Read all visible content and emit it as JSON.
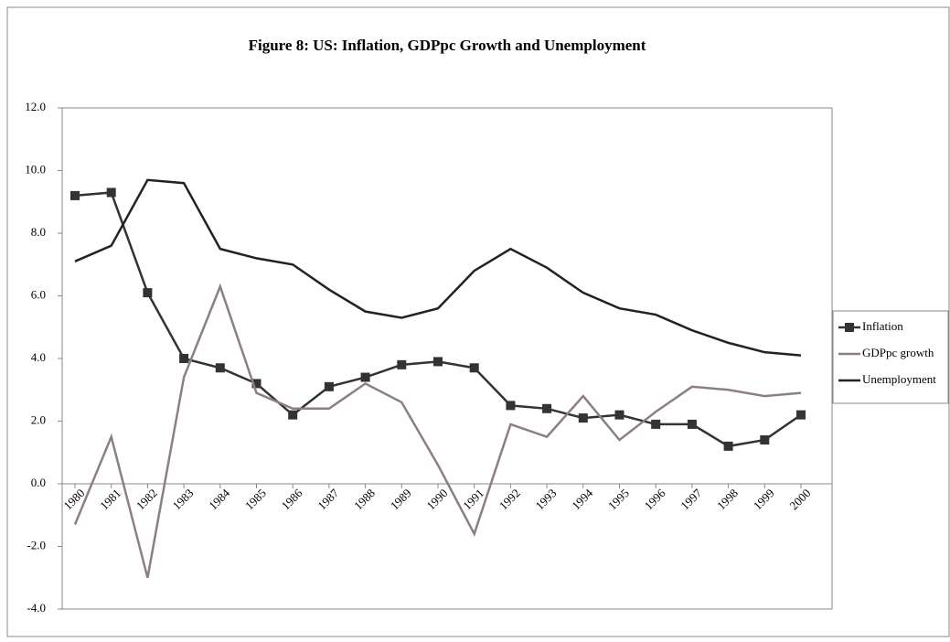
{
  "chart_data": {
    "type": "line",
    "title": "Figure 8: US: Inflation, GDPpc Growth and Unemployment",
    "categories": [
      "1980",
      "1981",
      "1982",
      "1983",
      "1984",
      "1985",
      "1986",
      "1987",
      "1988",
      "1989",
      "1990",
      "1991",
      "1992",
      "1993",
      "1994",
      "1995",
      "1996",
      "1997",
      "1998",
      "1999",
      "2000"
    ],
    "series": [
      {
        "name": "Inflation",
        "color": "#333333",
        "marker": "square",
        "values": [
          9.2,
          9.3,
          6.1,
          4.0,
          3.7,
          3.2,
          2.2,
          3.1,
          3.4,
          3.8,
          3.9,
          3.7,
          2.5,
          2.4,
          2.1,
          2.2,
          1.9,
          1.9,
          1.2,
          1.4,
          2.2
        ]
      },
      {
        "name": "GDPpc growth",
        "color": "#8c7f7f",
        "values": [
          -1.3,
          1.5,
          -3.0,
          3.4,
          6.3,
          2.9,
          2.4,
          2.4,
          3.2,
          2.6,
          0.6,
          -1.6,
          1.9,
          1.5,
          2.8,
          1.4,
          2.3,
          3.1,
          3.0,
          2.8,
          2.9
        ]
      },
      {
        "name": "Unemployment",
        "color": "#222222",
        "values": [
          7.1,
          7.6,
          9.7,
          9.6,
          7.5,
          7.2,
          7.0,
          6.2,
          5.5,
          5.3,
          5.6,
          6.8,
          7.5,
          6.9,
          6.1,
          5.6,
          5.4,
          4.9,
          4.5,
          4.2,
          4.1
        ]
      }
    ],
    "ylim": [
      -4,
      12
    ],
    "yticks": [
      {
        "value": -4,
        "label": "-4.0"
      },
      {
        "value": -2,
        "label": "-2.0"
      },
      {
        "value": 0,
        "label": "0.0"
      },
      {
        "value": 2,
        "label": "2.0"
      },
      {
        "value": 4,
        "label": "4.0"
      },
      {
        "value": 6,
        "label": "6.0"
      },
      {
        "value": 8,
        "label": "8.0"
      },
      {
        "value": 10,
        "label": "10.0"
      },
      {
        "value": 12,
        "label": "12.0"
      }
    ],
    "grid": false,
    "legend": "right"
  }
}
